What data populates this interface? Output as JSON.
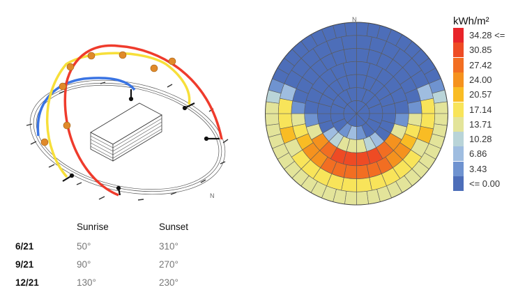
{
  "sunpath": {
    "north_label": "N",
    "colors": {
      "june": "#ef3b2c",
      "september": "#f7df3a",
      "december": "#3a74e3",
      "sun": "#e08a2a"
    }
  },
  "skydome": {
    "north_label": "N",
    "rings": [
      {
        "cells": 8,
        "values": [
          0,
          0,
          0,
          0,
          0,
          0,
          0,
          0
        ]
      },
      {
        "cells": 16,
        "values": [
          0,
          0,
          0,
          0,
          0,
          0,
          0,
          4.5,
          8,
          4.5,
          0,
          0,
          0,
          0,
          0,
          0
        ]
      },
      {
        "cells": 24,
        "values": [
          0,
          0,
          0,
          0,
          0,
          0,
          0,
          0,
          0,
          9,
          12,
          15,
          15,
          15,
          12,
          9,
          0,
          0,
          0,
          0,
          0,
          0,
          0,
          0
        ]
      },
      {
        "cells": 24,
        "values": [
          0,
          0,
          0,
          0,
          0,
          0,
          3.5,
          15,
          24,
          29,
          32,
          34,
          34,
          32,
          29,
          24,
          15,
          3.5,
          0,
          0,
          0,
          0,
          0,
          0
        ]
      },
      {
        "cells": 32,
        "values": [
          0,
          0,
          0,
          0,
          0,
          0,
          0,
          3.5,
          14,
          18,
          21,
          25,
          27,
          29,
          30,
          30,
          30,
          30,
          29,
          27,
          25,
          21,
          18,
          14,
          3.5,
          0,
          0,
          0,
          0,
          0,
          0,
          0
        ]
      },
      {
        "cells": 32,
        "values": [
          0,
          0,
          0,
          0,
          0,
          0,
          8,
          18,
          20,
          21,
          17,
          18,
          20,
          20,
          20,
          20,
          20,
          20,
          20,
          20,
          18,
          17,
          21,
          20,
          18,
          8,
          0,
          0,
          0,
          0,
          0,
          0
        ]
      },
      {
        "cells": 48,
        "values": [
          0,
          0,
          0,
          0,
          0,
          0,
          0,
          0,
          0,
          3.5,
          12,
          16,
          16,
          16,
          14,
          14,
          16,
          16,
          17,
          17,
          17,
          17,
          17,
          17,
          17,
          17,
          17,
          17,
          17,
          17,
          16,
          16,
          14,
          14,
          16,
          16,
          16,
          12,
          3.5,
          0,
          0,
          0,
          0,
          0,
          0,
          0,
          0,
          0
        ]
      }
    ]
  },
  "legend": {
    "title": "kWh/m²",
    "entries": [
      {
        "label": "34.28 <=",
        "color": "#e8242a"
      },
      {
        "label": "30.85",
        "color": "#ee4b24"
      },
      {
        "label": "27.42",
        "color": "#f26e22"
      },
      {
        "label": "24.00",
        "color": "#f5921e"
      },
      {
        "label": "20.57",
        "color": "#f9bc24"
      },
      {
        "label": "17.14",
        "color": "#f8e45a"
      },
      {
        "label": "13.71",
        "color": "#e3e49a"
      },
      {
        "label": "10.28",
        "color": "#b9d4d8"
      },
      {
        "label": "6.86",
        "color": "#9fbde0"
      },
      {
        "label": "3.43",
        "color": "#6f93d0"
      },
      {
        "label": "<= 0.00",
        "color": "#4d6eb9"
      }
    ]
  },
  "table": {
    "headers": [
      "",
      "Sunrise",
      "Sunset"
    ],
    "rows": [
      {
        "date": "6/21",
        "sunrise": "50°",
        "sunset": "310°"
      },
      {
        "date": "9/21",
        "sunrise": "90°",
        "sunset": "270°"
      },
      {
        "date": "12/21",
        "sunrise": "130°",
        "sunset": "230°"
      }
    ]
  }
}
